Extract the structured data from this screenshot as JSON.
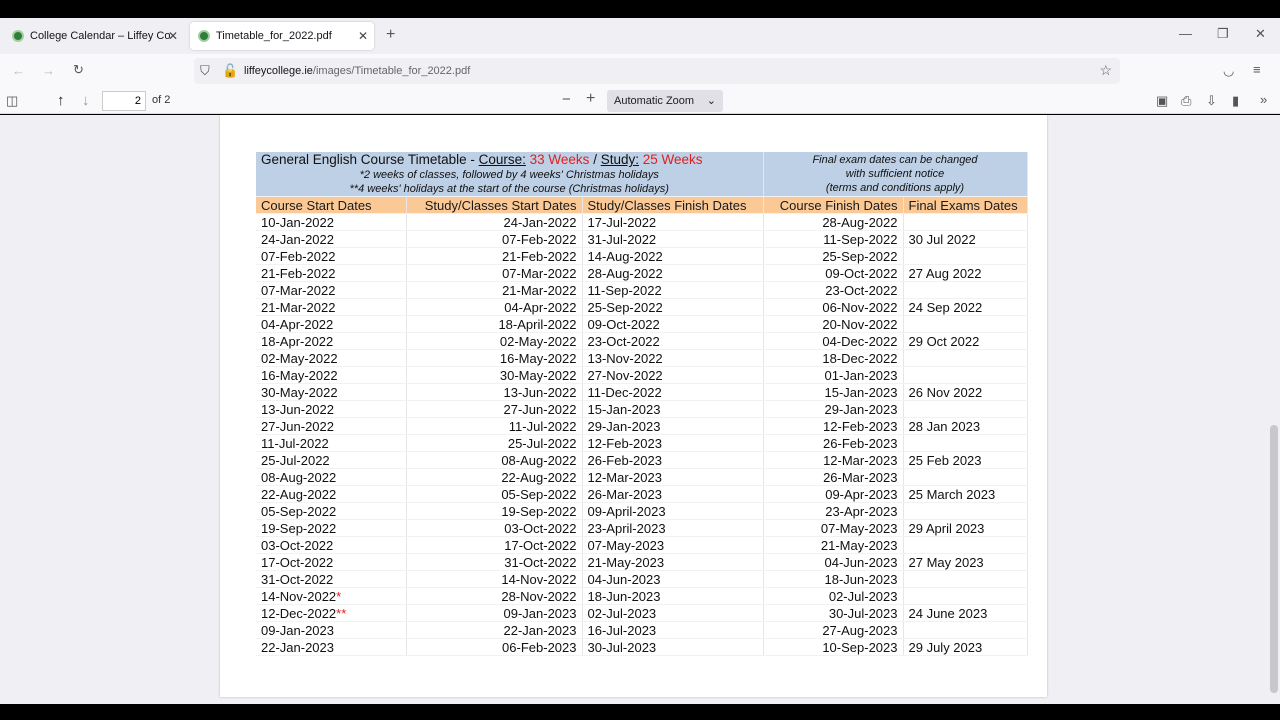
{
  "browser": {
    "tabs": [
      {
        "title": "College Calendar – Liffey College"
      },
      {
        "title": "Timetable_for_2022.pdf"
      }
    ],
    "url_host": "liffeycollege.ie",
    "url_path": "/images/Timetable_for_2022.pdf"
  },
  "pdf_toolbar": {
    "page": "2",
    "page_count": "of 2",
    "zoom": "Automatic Zoom"
  },
  "timetable": {
    "title": "General English Course Timetable - ",
    "course_label": "Course:",
    "course_value": "33 Weeks",
    "sep": " / ",
    "study_label": "Study:",
    "study_value": "25 Weeks",
    "note1": "*2 weeks of classes, followed by 4 weeks' Christmas holidays",
    "note2": "**4 weeks' holidays at the start of the course (Christmas holidays)",
    "exam_note1": "Final exam dates can be changed",
    "exam_note2": "with sufficient notice",
    "exam_note3": "(terms and conditions apply)",
    "accent": "#e02020",
    "columns": [
      "Course Start Dates",
      "Study/Classes Start Dates",
      "Study/Classes Finish Dates",
      "Course Finish Dates",
      "Final Exams Dates"
    ],
    "rows": [
      [
        "10-Jan-2022",
        "",
        "24-Jan-2022",
        "17-Jul-2022",
        "28-Aug-2022",
        ""
      ],
      [
        "24-Jan-2022",
        "",
        "07-Feb-2022",
        "31-Jul-2022",
        "11-Sep-2022",
        "30 Jul 2022"
      ],
      [
        "07-Feb-2022",
        "",
        "21-Feb-2022",
        "14-Aug-2022",
        "25-Sep-2022",
        ""
      ],
      [
        "21-Feb-2022",
        "",
        "07-Mar-2022",
        "28-Aug-2022",
        "09-Oct-2022",
        "27 Aug 2022"
      ],
      [
        "07-Mar-2022",
        "",
        "21-Mar-2022",
        "11-Sep-2022",
        "23-Oct-2022",
        ""
      ],
      [
        "21-Mar-2022",
        "",
        "04-Apr-2022",
        "25-Sep-2022",
        "06-Nov-2022",
        "24 Sep 2022"
      ],
      [
        "04-Apr-2022",
        "",
        "18-April-2022",
        "09-Oct-2022",
        "20-Nov-2022",
        ""
      ],
      [
        "18-Apr-2022",
        "",
        "02-May-2022",
        "23-Oct-2022",
        "04-Dec-2022",
        "29 Oct 2022"
      ],
      [
        "02-May-2022",
        "",
        "16-May-2022",
        "13-Nov-2022",
        "18-Dec-2022",
        ""
      ],
      [
        "16-May-2022",
        "",
        "30-May-2022",
        "27-Nov-2022",
        "01-Jan-2023",
        ""
      ],
      [
        "30-May-2022",
        "",
        "13-Jun-2022",
        "11-Dec-2022",
        "15-Jan-2023",
        "26 Nov 2022"
      ],
      [
        "13-Jun-2022",
        "",
        "27-Jun-2022",
        "15-Jan-2023",
        "29-Jan-2023",
        ""
      ],
      [
        "27-Jun-2022",
        "",
        "11-Jul-2022",
        "29-Jan-2023",
        "12-Feb-2023",
        "28 Jan 2023"
      ],
      [
        "11-Jul-2022",
        "",
        "25-Jul-2022",
        "12-Feb-2023",
        "26-Feb-2023",
        ""
      ],
      [
        "25-Jul-2022",
        "",
        "08-Aug-2022",
        "26-Feb-2023",
        "12-Mar-2023",
        "25 Feb 2023"
      ],
      [
        "08-Aug-2022",
        "",
        "22-Aug-2022",
        "12-Mar-2023",
        "26-Mar-2023",
        ""
      ],
      [
        "22-Aug-2022",
        "",
        "05-Sep-2022",
        "26-Mar-2023",
        "09-Apr-2023",
        "25 March 2023"
      ],
      [
        "05-Sep-2022",
        "",
        "19-Sep-2022",
        "09-April-2023",
        "23-Apr-2023",
        ""
      ],
      [
        "19-Sep-2022",
        "",
        "03-Oct-2022",
        "23-April-2023",
        "07-May-2023",
        "29 April 2023"
      ],
      [
        "03-Oct-2022",
        "",
        "17-Oct-2022",
        "07-May-2023",
        "21-May-2023",
        ""
      ],
      [
        "17-Oct-2022",
        "",
        "31-Oct-2022",
        "21-May-2023",
        "04-Jun-2023",
        "27 May 2023"
      ],
      [
        "31-Oct-2022",
        "",
        "14-Nov-2022",
        "04-Jun-2023",
        "18-Jun-2023",
        ""
      ],
      [
        "14-Nov-2022",
        "*",
        "28-Nov-2022",
        "18-Jun-2023",
        "02-Jul-2023",
        ""
      ],
      [
        "12-Dec-2022",
        "**",
        "09-Jan-2023",
        "02-Jul-2023",
        "30-Jul-2023",
        "24 June 2023"
      ],
      [
        "09-Jan-2023",
        "",
        "22-Jan-2023",
        "16-Jul-2023",
        "27-Aug-2023",
        ""
      ],
      [
        "22-Jan-2023",
        "",
        "06-Feb-2023",
        "30-Jul-2023",
        "10-Sep-2023",
        "29 July 2023"
      ]
    ]
  }
}
